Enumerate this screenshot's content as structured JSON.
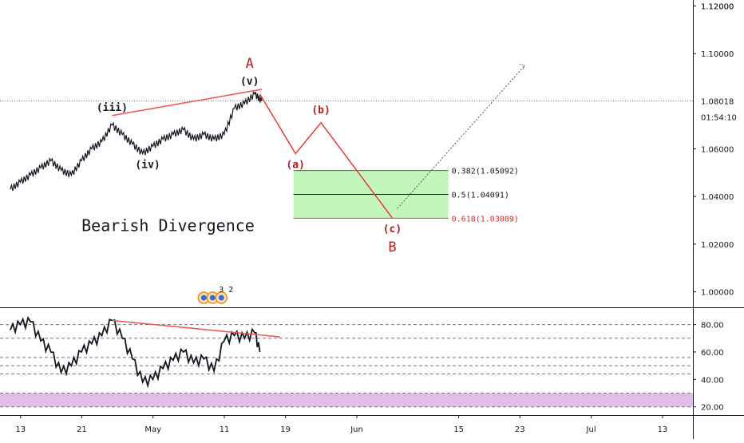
{
  "chart_data": [
    {
      "type": "line",
      "title": "Bearish Divergence",
      "price_scale": {
        "ticks": [
          "1.12000",
          "1.10000",
          "1.06000",
          "1.04000",
          "1.02000",
          "1.00000"
        ],
        "tick_values": [
          1.12,
          1.1,
          1.06,
          1.04,
          1.02,
          1.0
        ],
        "last_price_label": "1.08018",
        "last_price": 1.08018,
        "countdown_label": "01:54:10",
        "ylim": [
          0.9935,
          1.1225
        ]
      },
      "x_axis": {
        "labels": [
          "13",
          "21",
          "May",
          "11",
          "19",
          "Jun",
          "15",
          "23",
          "Jul",
          "13"
        ],
        "positions": [
          0,
          6,
          13,
          20,
          26,
          33,
          43,
          49,
          56,
          63
        ],
        "xlim": [
          -1,
          67
        ]
      },
      "price_series": [
        [
          0,
          1.043
        ],
        [
          1,
          1.046
        ],
        [
          2,
          1.049
        ],
        [
          3,
          1.052
        ],
        [
          4,
          1.055
        ],
        [
          5,
          1.051
        ],
        [
          6,
          1.049
        ],
        [
          7,
          1.055
        ],
        [
          8,
          1.06
        ],
        [
          9,
          1.063
        ],
        [
          10,
          1.07
        ],
        [
          11,
          1.066
        ],
        [
          12,
          1.062
        ],
        [
          13,
          1.058
        ],
        [
          14,
          1.061
        ],
        [
          15,
          1.064
        ],
        [
          16,
          1.066
        ],
        [
          17,
          1.068
        ],
        [
          18,
          1.064
        ],
        [
          19,
          1.066
        ],
        [
          20,
          1.064
        ],
        [
          21,
          1.066
        ],
        [
          22,
          1.077
        ],
        [
          23,
          1.079
        ],
        [
          24,
          1.083
        ],
        [
          24.7,
          1.08
        ]
      ],
      "wave_path": [
        [
          24.5,
          1.083
        ],
        [
          28,
          1.058
        ],
        [
          30.5,
          1.071
        ],
        [
          37.5,
          1.031
        ]
      ],
      "upper_trendline": [
        [
          10,
          1.074
        ],
        [
          24.7,
          1.085
        ]
      ],
      "dotted_projection": [
        [
          38,
          1.035
        ],
        [
          50.5,
          1.095
        ]
      ],
      "fib_box": {
        "x_range": [
          27.8,
          43
        ],
        "levels": [
          {
            "ratio": "0.382",
            "price": 1.05092,
            "label": "0.382(1.05092)"
          },
          {
            "ratio": "0.5",
            "price": 1.04091,
            "label": "0.5(1.04091)"
          },
          {
            "ratio": "0.618",
            "price": 1.03089,
            "label": "0.618(1.03089)"
          }
        ],
        "fill_color": "#b7f4b0",
        "line_color": "#2e7d32",
        "bottom_line_color": "#e53935"
      },
      "wave_labels": [
        {
          "text": "(iii)",
          "x": 10,
          "y": 1.076,
          "color": "black"
        },
        {
          "text": "(iv)",
          "x": 13.5,
          "y": 1.052,
          "color": "black"
        },
        {
          "text": "(v)",
          "x": 23.5,
          "y": 1.087,
          "color": "black"
        },
        {
          "text": "A",
          "x": 23.5,
          "y": 1.094,
          "color": "red"
        },
        {
          "text": "(a)",
          "x": 28,
          "y": 1.052,
          "color": "red"
        },
        {
          "text": "(b)",
          "x": 30.5,
          "y": 1.075,
          "color": "red"
        },
        {
          "text": "(c)",
          "x": 37.5,
          "y": 1.025,
          "color": "red"
        },
        {
          "text": "B",
          "x": 37.5,
          "y": 1.017,
          "color": "red"
        }
      ],
      "badge": {
        "numbers": [
          "3",
          "2"
        ]
      },
      "colors": {
        "price": "#131722",
        "wave": "#e53935",
        "trend": "#ef5350",
        "fib_fill": "#b7f4b0",
        "band": "#e1bee7"
      }
    },
    {
      "type": "line",
      "indicator_scale": {
        "ticks": [
          "80.00",
          "60.00",
          "40.00",
          "20.00"
        ],
        "tick_values": [
          80,
          60,
          40,
          20
        ],
        "ylim": [
          14,
          92
        ]
      },
      "dashed_levels": [
        80,
        70,
        56,
        50,
        44,
        30,
        20
      ],
      "band": [
        20,
        30
      ],
      "trendline": [
        [
          10,
          83
        ],
        [
          26.5,
          71
        ]
      ],
      "series": [
        [
          0,
          76
        ],
        [
          1,
          80
        ],
        [
          2,
          82
        ],
        [
          3,
          68
        ],
        [
          4,
          60
        ],
        [
          5,
          45
        ],
        [
          6,
          50
        ],
        [
          7,
          60
        ],
        [
          8,
          66
        ],
        [
          9,
          72
        ],
        [
          10,
          83
        ],
        [
          11,
          70
        ],
        [
          12,
          55
        ],
        [
          13,
          38
        ],
        [
          14,
          40
        ],
        [
          15,
          48
        ],
        [
          16,
          54
        ],
        [
          17,
          60
        ],
        [
          18,
          52
        ],
        [
          19,
          55
        ],
        [
          20,
          46
        ],
        [
          21,
          68
        ],
        [
          22,
          72
        ],
        [
          23,
          70
        ],
        [
          24,
          74
        ],
        [
          24.5,
          60
        ]
      ]
    }
  ]
}
